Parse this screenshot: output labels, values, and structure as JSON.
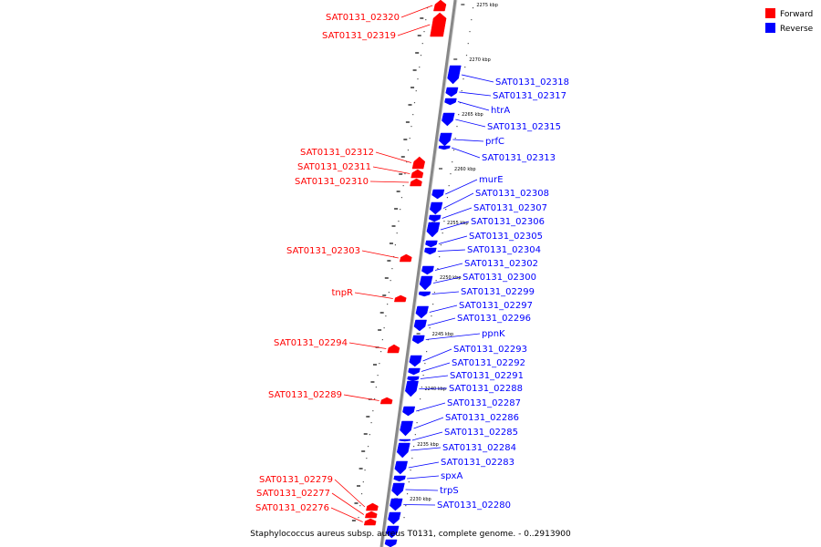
{
  "caption": "Staphylococcus aureus subsp. aureus T0131, complete genome. - 0..2913900",
  "legend": [
    {
      "label": "Forward",
      "color": "#ff0000"
    },
    {
      "label": "Reverse",
      "color": "#0000ff"
    }
  ],
  "colors": {
    "forward": "#ff0000",
    "reverse": "#0000ff",
    "backbone": "#888888"
  },
  "ticks": [
    {
      "label": "2275 kbp"
    },
    {
      "label": "2270 kbp"
    },
    {
      "label": "2265 kbp"
    },
    {
      "label": "2260 kbp"
    },
    {
      "label": "2255 kbp"
    },
    {
      "label": "2250 kbp"
    },
    {
      "label": "2245 kbp"
    },
    {
      "label": "2240 kbp"
    },
    {
      "label": "2235 kbp"
    },
    {
      "label": "2230 kbp"
    }
  ],
  "forward_genes": [
    {
      "name": "SAT0131_02320"
    },
    {
      "name": "SAT0131_02319"
    },
    {
      "name": "SAT0131_02312"
    },
    {
      "name": "SAT0131_02311"
    },
    {
      "name": "SAT0131_02310"
    },
    {
      "name": "SAT0131_02303"
    },
    {
      "name": "tnpR"
    },
    {
      "name": "SAT0131_02294"
    },
    {
      "name": "SAT0131_02289"
    },
    {
      "name": "SAT0131_02279"
    },
    {
      "name": "SAT0131_02277"
    },
    {
      "name": "SAT0131_02276"
    }
  ],
  "reverse_genes": [
    {
      "name": "SAT0131_02318"
    },
    {
      "name": "SAT0131_02317"
    },
    {
      "name": "htrA"
    },
    {
      "name": "SAT0131_02315"
    },
    {
      "name": "prfC"
    },
    {
      "name": "SAT0131_02313"
    },
    {
      "name": "murE"
    },
    {
      "name": "SAT0131_02308"
    },
    {
      "name": "SAT0131_02307"
    },
    {
      "name": "SAT0131_02306"
    },
    {
      "name": "SAT0131_02305"
    },
    {
      "name": "SAT0131_02304"
    },
    {
      "name": "SAT0131_02302"
    },
    {
      "name": "SAT0131_02300"
    },
    {
      "name": "SAT0131_02299"
    },
    {
      "name": "SAT0131_02297"
    },
    {
      "name": "SAT0131_02296"
    },
    {
      "name": "ppnK"
    },
    {
      "name": "SAT0131_02293"
    },
    {
      "name": "SAT0131_02292"
    },
    {
      "name": "SAT0131_02291"
    },
    {
      "name": "SAT0131_02288"
    },
    {
      "name": "SAT0131_02287"
    },
    {
      "name": "SAT0131_02286"
    },
    {
      "name": "SAT0131_02285"
    },
    {
      "name": "SAT0131_02284"
    },
    {
      "name": "SAT0131_02283"
    },
    {
      "name": "spxA"
    },
    {
      "name": "trpS"
    },
    {
      "name": "SAT0131_02280"
    }
  ]
}
